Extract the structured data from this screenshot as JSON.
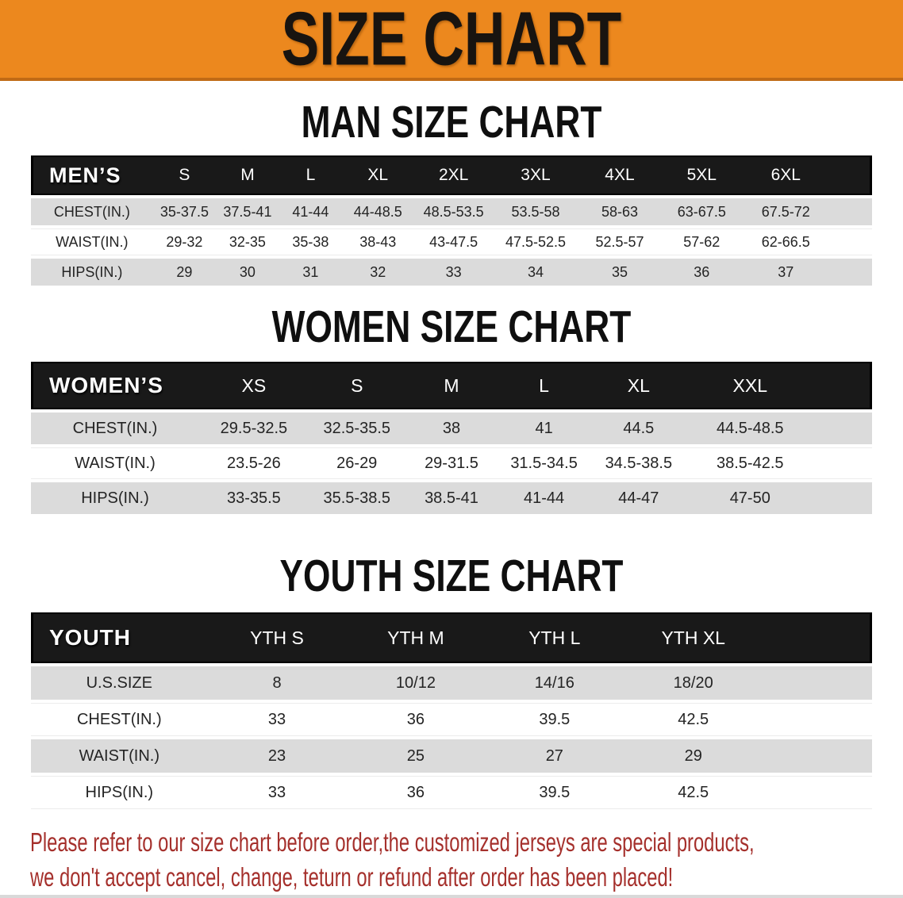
{
  "banner": {
    "title": "SIZE CHART"
  },
  "sections": [
    {
      "title": "MAN SIZE CHART",
      "table": {
        "header_label": "MEN’S",
        "columns": [
          "S",
          "M",
          "L",
          "XL",
          "2XL",
          "3XL",
          "4XL",
          "5XL",
          "6XL"
        ],
        "col_widths": [
          "14.5%",
          "7.5%",
          "7.5%",
          "7.5%",
          "8.5%",
          "9.5%",
          "10%",
          "10%",
          "9.5%",
          "10.5%",
          "5%"
        ],
        "rows": [
          {
            "label": "CHEST(IN.)",
            "values": [
              "35-37.5",
              "37.5-41",
              "41-44",
              "44-48.5",
              "48.5-53.5",
              "53.5-58",
              "58-63",
              "63-67.5",
              "67.5-72"
            ]
          },
          {
            "label": "WAIST(IN.)",
            "values": [
              "29-32",
              "32-35",
              "35-38",
              "38-43",
              "43-47.5",
              "47.5-52.5",
              "52.5-57",
              "57-62",
              "62-66.5"
            ]
          },
          {
            "label": "HIPS(IN.)",
            "values": [
              "29",
              "30",
              "31",
              "32",
              "33",
              "34",
              "35",
              "36",
              "37"
            ]
          }
        ]
      }
    },
    {
      "title": "WOMEN SIZE CHART",
      "table": {
        "header_label": "WOMEN’S",
        "columns": [
          "XS",
          "S",
          "M",
          "L",
          "XL",
          "XXL"
        ],
        "col_widths": [
          "20%",
          "13%",
          "11.5%",
          "11%",
          "11%",
          "11.5%",
          "15%",
          "7%"
        ],
        "rows": [
          {
            "label": "CHEST(IN.)",
            "values": [
              "29.5-32.5",
              "32.5-35.5",
              "38",
              "41",
              "44.5",
              "44.5-48.5"
            ]
          },
          {
            "label": "WAIST(IN.)",
            "values": [
              "23.5-26",
              "26-29",
              "29-31.5",
              "31.5-34.5",
              "34.5-38.5",
              "38.5-42.5"
            ]
          },
          {
            "label": "HIPS(IN.)",
            "values": [
              "33-35.5",
              "35.5-38.5",
              "38.5-41",
              "41-44",
              "44-47",
              "47-50"
            ]
          }
        ]
      }
    },
    {
      "title": "YOUTH SIZE CHART",
      "table": {
        "header_label": "YOUTH",
        "columns": [
          "YTH S",
          "YTH M",
          "YTH L",
          "YTH XL"
        ],
        "col_widths": [
          "21%",
          "16.5%",
          "16.5%",
          "16.5%",
          "16.5%",
          "13%"
        ],
        "rows": [
          {
            "label": "U.S.SIZE",
            "values": [
              "8",
              "10/12",
              "14/16",
              "18/20"
            ]
          },
          {
            "label": "CHEST(IN.)",
            "values": [
              "33",
              "36",
              "39.5",
              "42.5"
            ]
          },
          {
            "label": "WAIST(IN.)",
            "values": [
              "23",
              "25",
              "27",
              "29"
            ]
          },
          {
            "label": "HIPS(IN.)",
            "values": [
              "33",
              "36",
              "39.5",
              "42.5"
            ]
          }
        ]
      }
    }
  ],
  "disclaimer": {
    "line1": "Please refer to our size chart before order,the customized jerseys are special products,",
    "line2": "we don't accept cancel, change, teturn or refund after order has been placed!"
  },
  "colors": {
    "banner_bg": "#EC881E",
    "banner_text": "#181410",
    "band_bg": "#191919",
    "band_text": "#FFFFFF",
    "row_gray": "#DBDBDB",
    "row_white": "#FFFFFF",
    "table_text": "#242424",
    "title_text": "#0F0F0F",
    "disclaimer_text": "#A5302C"
  }
}
